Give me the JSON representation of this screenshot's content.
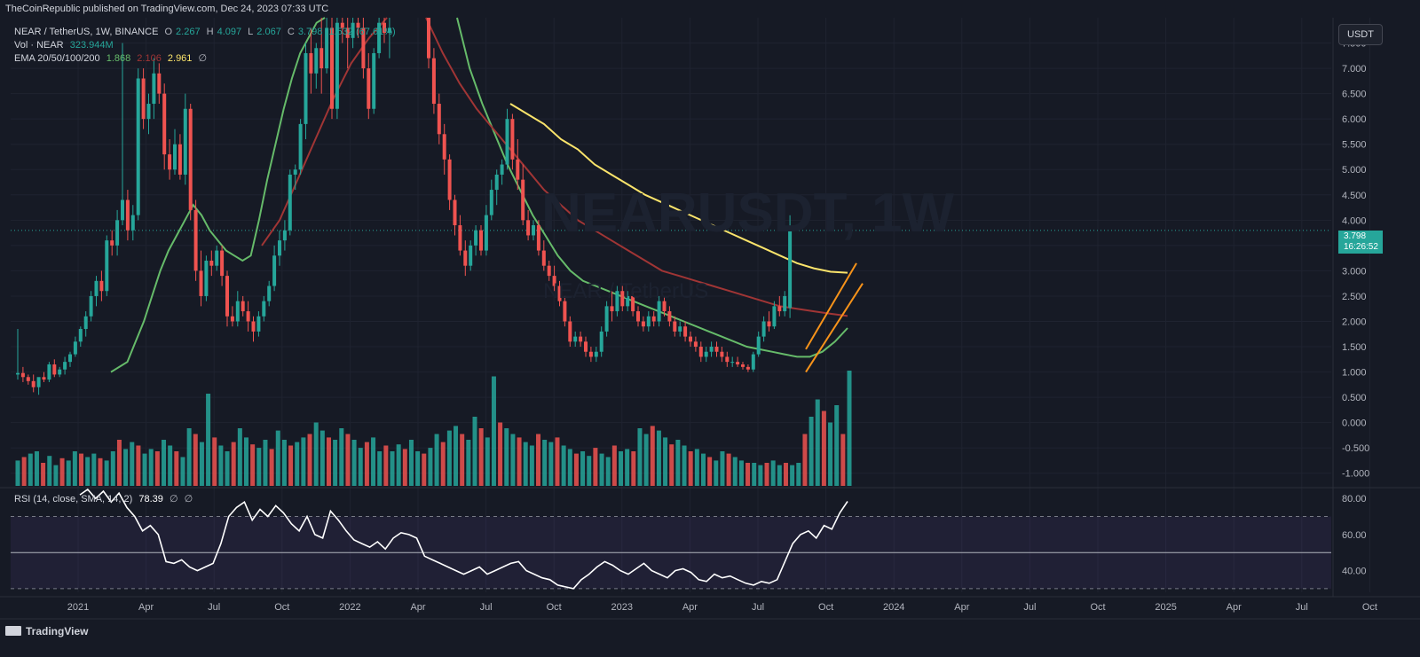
{
  "publisher": "TheCoinRepublic published on TradingView.com, Dec 24, 2023 07:33 UTC",
  "legend": {
    "symbol": "NEAR / TetherUS, 1W, BINANCE",
    "o_label": "O",
    "o_value": "2.267",
    "h_label": "H",
    "h_value": "4.097",
    "l_label": "L",
    "l_value": "2.067",
    "c_label": "C",
    "c_value": "3.798",
    "change": "1.532 (67.61%)",
    "vol_label": "Vol · NEAR",
    "vol_value": "323.944M",
    "ema_label": "EMA 20/50/100/200",
    "ema20": "1.868",
    "ema50": "2.106",
    "ema100": "2.961",
    "ema_null": "∅",
    "rsi_label": "RSI (14, close, SMA, 14, 2)",
    "rsi_value": "78.39",
    "rsi_null1": "∅",
    "rsi_null2": "∅"
  },
  "watermark": {
    "symbol": "NEARUSDT, 1W",
    "name": "NEAR / TetherUS"
  },
  "currency_button": "USDT",
  "price_badge": {
    "price": "3.798",
    "countdown": "16:26:52"
  },
  "footer": {
    "brand": "TradingView"
  },
  "colors": {
    "up": "#26a69a",
    "down": "#ef5350",
    "ema20": "#66bb6a",
    "ema50": "#a03535",
    "ema100": "#fbe46b",
    "channel": "#f7931a",
    "rsi": "#ffffff",
    "background": "#161a25"
  },
  "chart_data": [
    {
      "type": "candlestick",
      "title": "NEAR / TetherUS, 1W, BINANCE",
      "x_ticks": [
        "2021",
        "Apr",
        "Jul",
        "Oct",
        "2022",
        "Apr",
        "Jul",
        "Oct",
        "2023",
        "Apr",
        "Jul",
        "Oct",
        "2024",
        "Apr",
        "Jul",
        "Oct",
        "2025",
        "Apr",
        "Jul",
        "Oct"
      ],
      "y_ticks": [
        "7.500",
        "7.000",
        "6.500",
        "6.000",
        "5.500",
        "5.000",
        "4.500",
        "4.000",
        "3.500",
        "3.000",
        "2.500",
        "2.000",
        "1.500",
        "1.000",
        "0.500",
        "0.000",
        "-0.500",
        "-1.000"
      ],
      "ylim": [
        -1.25,
        8.0
      ],
      "last_price": 3.798,
      "candles_ohlc_weekly_approx": [
        [
          0.95,
          1.85,
          0.85,
          0.98
        ],
        [
          0.98,
          1.1,
          0.8,
          0.9
        ],
        [
          0.9,
          0.95,
          0.75,
          0.82
        ],
        [
          0.82,
          0.95,
          0.6,
          0.7
        ],
        [
          0.7,
          0.85,
          0.55,
          0.9
        ],
        [
          0.9,
          1.0,
          0.8,
          0.85
        ],
        [
          0.85,
          1.2,
          0.8,
          1.15
        ],
        [
          1.15,
          1.25,
          0.9,
          0.95
        ],
        [
          0.95,
          1.1,
          0.9,
          1.05
        ],
        [
          1.05,
          1.3,
          0.95,
          1.2
        ],
        [
          1.2,
          1.4,
          1.1,
          1.35
        ],
        [
          1.35,
          1.7,
          1.3,
          1.6
        ],
        [
          1.6,
          1.9,
          1.5,
          1.85
        ],
        [
          1.85,
          2.2,
          1.7,
          2.1
        ],
        [
          2.1,
          2.6,
          2.0,
          2.5
        ],
        [
          2.5,
          2.9,
          2.3,
          2.8
        ],
        [
          2.8,
          3.0,
          2.4,
          2.6
        ],
        [
          2.6,
          3.7,
          2.5,
          3.6
        ],
        [
          3.6,
          3.8,
          3.3,
          3.5
        ],
        [
          3.5,
          4.2,
          3.3,
          4.0
        ],
        [
          4.0,
          7.5,
          3.9,
          4.4
        ],
        [
          4.4,
          4.6,
          3.6,
          3.8
        ],
        [
          3.8,
          4.3,
          3.6,
          4.1
        ],
        [
          4.1,
          7.0,
          4.0,
          6.8
        ],
        [
          6.8,
          7.0,
          5.8,
          6.0
        ],
        [
          6.0,
          6.5,
          5.7,
          6.3
        ],
        [
          6.3,
          7.2,
          6.0,
          6.9
        ],
        [
          6.9,
          7.1,
          6.3,
          6.5
        ],
        [
          6.5,
          6.7,
          5.0,
          5.3
        ],
        [
          5.3,
          5.6,
          4.8,
          5.0
        ],
        [
          5.0,
          5.8,
          4.9,
          5.5
        ],
        [
          5.5,
          5.7,
          4.8,
          4.9
        ],
        [
          4.9,
          6.5,
          4.7,
          6.2
        ],
        [
          6.2,
          6.3,
          4.0,
          4.2
        ],
        [
          4.2,
          4.4,
          2.8,
          3.0
        ],
        [
          3.0,
          3.4,
          2.3,
          2.5
        ],
        [
          2.5,
          3.3,
          2.4,
          3.2
        ],
        [
          3.2,
          3.4,
          2.9,
          3.1
        ],
        [
          3.1,
          3.5,
          3.0,
          3.4
        ],
        [
          3.4,
          3.5,
          2.7,
          2.9
        ],
        [
          2.9,
          3.0,
          1.9,
          2.1
        ],
        [
          2.1,
          2.3,
          1.9,
          2.0
        ],
        [
          2.0,
          2.6,
          1.9,
          2.4
        ],
        [
          2.4,
          2.5,
          2.1,
          2.2
        ],
        [
          2.2,
          2.4,
          1.8,
          2.0
        ],
        [
          2.0,
          2.1,
          1.6,
          1.8
        ],
        [
          1.8,
          2.2,
          1.7,
          2.1
        ],
        [
          2.1,
          2.5,
          2.0,
          2.4
        ],
        [
          2.4,
          2.8,
          2.3,
          2.7
        ],
        [
          2.7,
          3.5,
          2.6,
          3.3
        ],
        [
          3.3,
          3.8,
          3.1,
          3.6
        ],
        [
          3.6,
          4.0,
          3.4,
          3.8
        ],
        [
          3.8,
          5.0,
          3.7,
          4.9
        ],
        [
          4.9,
          5.1,
          4.6,
          5.0
        ],
        [
          5.0,
          6.0,
          4.9,
          5.9
        ],
        [
          5.9,
          7.5,
          5.6,
          7.3
        ],
        [
          7.3,
          7.8,
          6.5,
          6.9
        ],
        [
          6.9,
          7.5,
          6.6,
          7.4
        ],
        [
          7.4,
          8.0,
          6.5,
          7.0
        ],
        [
          7.0,
          8.0,
          6.9,
          7.8
        ],
        [
          7.8,
          8.0,
          6.0,
          6.2
        ],
        [
          6.2,
          8.0,
          6.0,
          7.9
        ],
        [
          7.9,
          8.0,
          7.5,
          7.8
        ],
        [
          7.8,
          8.0,
          7.0,
          7.6
        ],
        [
          7.6,
          8.0,
          7.4,
          7.9
        ],
        [
          7.9,
          8.0,
          7.6,
          7.8
        ],
        [
          7.8,
          8.0,
          6.8,
          7.0
        ],
        [
          7.0,
          7.3,
          6.0,
          6.2
        ],
        [
          6.2,
          7.4,
          6.1,
          7.3
        ],
        [
          7.3,
          8.0,
          7.2,
          7.9
        ],
        [
          7.9,
          8.0,
          7.5,
          7.7
        ],
        [
          7.7,
          8.0,
          7.2,
          7.8
        ]
      ],
      "candles_late_ohlc_weekly_approx": [
        [
          8.0,
          8.0,
          7.0,
          7.2
        ],
        [
          7.2,
          7.4,
          6.1,
          6.3
        ],
        [
          6.3,
          6.5,
          5.5,
          5.7
        ],
        [
          5.7,
          5.9,
          4.9,
          5.2
        ],
        [
          5.2,
          5.3,
          4.2,
          4.4
        ],
        [
          4.4,
          4.5,
          3.7,
          3.9
        ],
        [
          3.9,
          4.1,
          3.3,
          3.4
        ],
        [
          3.4,
          3.6,
          2.9,
          3.1
        ],
        [
          3.1,
          3.6,
          3.0,
          3.5
        ],
        [
          3.5,
          3.9,
          3.3,
          3.8
        ],
        [
          3.8,
          3.9,
          3.3,
          3.4
        ],
        [
          3.4,
          4.3,
          3.3,
          4.1
        ],
        [
          4.1,
          4.8,
          4.0,
          4.6
        ],
        [
          4.6,
          5.0,
          4.3,
          4.9
        ],
        [
          4.9,
          5.2,
          4.7,
          5.1
        ],
        [
          5.1,
          6.2,
          5.0,
          6.0
        ],
        [
          6.0,
          6.1,
          5.0,
          5.2
        ],
        [
          5.2,
          5.6,
          4.6,
          4.8
        ],
        [
          4.8,
          5.1,
          3.9,
          4.0
        ],
        [
          4.0,
          4.2,
          3.6,
          3.7
        ],
        [
          3.7,
          4.0,
          3.6,
          3.9
        ],
        [
          3.9,
          4.0,
          3.3,
          3.4
        ],
        [
          3.4,
          3.6,
          3.0,
          3.1
        ],
        [
          3.1,
          3.2,
          2.8,
          2.9
        ],
        [
          2.9,
          3.1,
          2.6,
          2.7
        ],
        [
          2.7,
          2.8,
          2.3,
          2.4
        ],
        [
          2.4,
          2.5,
          1.9,
          2.0
        ],
        [
          2.0,
          2.1,
          1.5,
          1.6
        ],
        [
          1.6,
          1.8,
          1.5,
          1.7
        ],
        [
          1.7,
          1.8,
          1.5,
          1.6
        ],
        [
          1.6,
          1.7,
          1.3,
          1.4
        ],
        [
          1.4,
          1.5,
          1.2,
          1.3
        ],
        [
          1.3,
          1.5,
          1.2,
          1.4
        ],
        [
          1.4,
          1.9,
          1.3,
          1.8
        ],
        [
          1.8,
          2.4,
          1.7,
          2.3
        ],
        [
          2.3,
          2.6,
          2.0,
          2.2
        ],
        [
          2.2,
          2.7,
          2.1,
          2.6
        ],
        [
          2.6,
          2.7,
          2.2,
          2.3
        ],
        [
          2.3,
          2.6,
          2.2,
          2.5
        ],
        [
          2.5,
          2.6,
          2.1,
          2.2
        ],
        [
          2.2,
          2.3,
          1.9,
          2.0
        ],
        [
          2.0,
          2.1,
          1.8,
          1.9
        ],
        [
          1.9,
          2.2,
          1.8,
          2.1
        ],
        [
          2.1,
          2.2,
          1.9,
          2.0
        ],
        [
          2.0,
          2.5,
          1.9,
          2.4
        ],
        [
          2.4,
          2.5,
          2.1,
          2.2
        ],
        [
          2.2,
          2.3,
          1.9,
          2.0
        ],
        [
          2.0,
          2.1,
          1.7,
          1.8
        ],
        [
          1.8,
          2.0,
          1.7,
          1.9
        ],
        [
          1.9,
          2.0,
          1.6,
          1.7
        ],
        [
          1.7,
          1.8,
          1.5,
          1.6
        ],
        [
          1.6,
          1.7,
          1.4,
          1.5
        ],
        [
          1.5,
          1.6,
          1.2,
          1.3
        ],
        [
          1.3,
          1.5,
          1.2,
          1.4
        ],
        [
          1.4,
          1.6,
          1.3,
          1.5
        ],
        [
          1.5,
          1.6,
          1.3,
          1.4
        ],
        [
          1.4,
          1.5,
          1.2,
          1.3
        ],
        [
          1.3,
          1.4,
          1.1,
          1.2
        ],
        [
          1.2,
          1.3,
          1.1,
          1.2
        ],
        [
          1.2,
          1.3,
          1.1,
          1.15
        ],
        [
          1.15,
          1.2,
          1.05,
          1.1
        ],
        [
          1.1,
          1.15,
          1.0,
          1.05
        ],
        [
          1.05,
          1.4,
          1.0,
          1.35
        ],
        [
          1.35,
          1.8,
          1.3,
          1.7
        ],
        [
          1.7,
          2.1,
          1.6,
          2.0
        ],
        [
          2.0,
          2.2,
          1.8,
          1.9
        ],
        [
          1.9,
          2.4,
          1.85,
          2.3
        ],
        [
          2.3,
          2.5,
          2.1,
          2.2
        ],
        [
          2.2,
          2.6,
          2.1,
          2.5
        ],
        [
          2.267,
          4.097,
          2.067,
          3.798
        ]
      ],
      "ema20_approx": [
        1.0,
        1.1,
        1.2,
        1.6,
        2.0,
        2.5,
        3.0,
        3.4,
        3.7,
        4.0,
        4.3,
        4.1,
        3.8,
        3.6,
        3.4,
        3.3,
        3.2,
        3.3,
        4.0,
        4.8,
        5.5,
        6.2,
        6.8,
        7.3,
        7.6,
        7.9,
        8.0
      ],
      "ema50_approx": [
        3.5,
        4.0,
        4.8,
        5.6,
        6.4,
        7.1,
        7.6,
        8.0
      ],
      "ema20_late_approx": [
        8.0,
        7.0,
        6.3,
        5.7,
        5.1,
        4.6,
        4.1,
        3.7,
        3.3,
        3.0,
        2.8,
        2.7,
        2.6,
        2.5,
        2.4,
        2.3,
        2.2,
        2.1,
        2.0,
        1.9,
        1.8,
        1.7,
        1.6,
        1.5,
        1.45,
        1.4,
        1.35,
        1.3,
        1.3,
        1.4,
        1.6,
        1.868
      ],
      "ema50_late_approx": [
        8.0,
        7.3,
        6.7,
        6.2,
        5.8,
        5.4,
        5.0,
        4.6,
        4.3,
        4.0,
        3.8,
        3.6,
        3.4,
        3.2,
        3.0,
        2.9,
        2.8,
        2.7,
        2.6,
        2.5,
        2.4,
        2.3,
        2.25,
        2.2,
        2.15,
        2.106
      ],
      "ema100_approx": [
        6.3,
        6.1,
        5.9,
        5.6,
        5.4,
        5.1,
        4.9,
        4.7,
        4.5,
        4.35,
        4.2,
        4.05,
        3.9,
        3.75,
        3.6,
        3.45,
        3.3,
        3.15,
        3.05,
        2.98,
        2.961
      ],
      "volume_relative": [
        0.22,
        0.25,
        0.28,
        0.3,
        0.2,
        0.26,
        0.18,
        0.24,
        0.22,
        0.3,
        0.28,
        0.25,
        0.28,
        0.24,
        0.22,
        0.3,
        0.4,
        0.32,
        0.38,
        0.35,
        0.28,
        0.32,
        0.3,
        0.4,
        0.35,
        0.3,
        0.25,
        0.5,
        0.45,
        0.38,
        0.8,
        0.42,
        0.35,
        0.3,
        0.38,
        0.5,
        0.42,
        0.36,
        0.33,
        0.4,
        0.32,
        0.48,
        0.4,
        0.35,
        0.38,
        0.42,
        0.45,
        0.55,
        0.48,
        0.42,
        0.4,
        0.5,
        0.45,
        0.4,
        0.33,
        0.38,
        0.42,
        0.3,
        0.35,
        0.3,
        0.36,
        0.32,
        0.4,
        0.3,
        0.28,
        0.33,
        0.45,
        0.38,
        0.48,
        0.52,
        0.45,
        0.4,
        0.6,
        0.5,
        0.42,
        0.95,
        0.55,
        0.5,
        0.45,
        0.42,
        0.38,
        0.35,
        0.45,
        0.4,
        0.38,
        0.42,
        0.35,
        0.32,
        0.28,
        0.3,
        0.26,
        0.33,
        0.28,
        0.25,
        0.35,
        0.3,
        0.32,
        0.3,
        0.5,
        0.45,
        0.52,
        0.48,
        0.42,
        0.36,
        0.4,
        0.35,
        0.3,
        0.32,
        0.28,
        0.25,
        0.22,
        0.3,
        0.28,
        0.25,
        0.22,
        0.2,
        0.2,
        0.18,
        0.2,
        0.22,
        0.18,
        0.2,
        0.18,
        0.2,
        0.45,
        0.6,
        0.75,
        0.65,
        0.55,
        0.7,
        0.45,
        1.0
      ],
      "rsi_ylim": [
        28,
        85
      ],
      "rsi_y_ticks": [
        "80.00",
        "60.00",
        "40.00"
      ],
      "rsi_bands": [
        30,
        50,
        70
      ],
      "rsi_values": [
        82,
        85,
        80,
        84,
        78,
        83,
        75,
        70,
        62,
        65,
        60,
        45,
        44,
        46,
        42,
        40,
        42,
        44,
        55,
        70,
        75,
        78,
        68,
        74,
        70,
        76,
        72,
        66,
        62,
        70,
        60,
        58,
        73,
        68,
        62,
        57,
        55,
        53,
        56,
        52,
        58,
        61,
        60,
        58,
        48,
        46,
        44,
        42,
        40,
        38,
        40,
        42,
        38,
        40,
        42,
        44,
        45,
        40,
        38,
        36,
        35,
        32,
        31,
        30,
        35,
        38,
        42,
        45,
        43,
        40,
        38,
        41,
        44,
        40,
        38,
        36,
        40,
        41,
        39,
        35,
        34,
        38,
        36,
        37,
        35,
        33,
        32,
        34,
        33,
        35,
        45,
        55,
        60,
        62,
        58,
        65,
        63,
        72,
        78.39
      ]
    }
  ]
}
